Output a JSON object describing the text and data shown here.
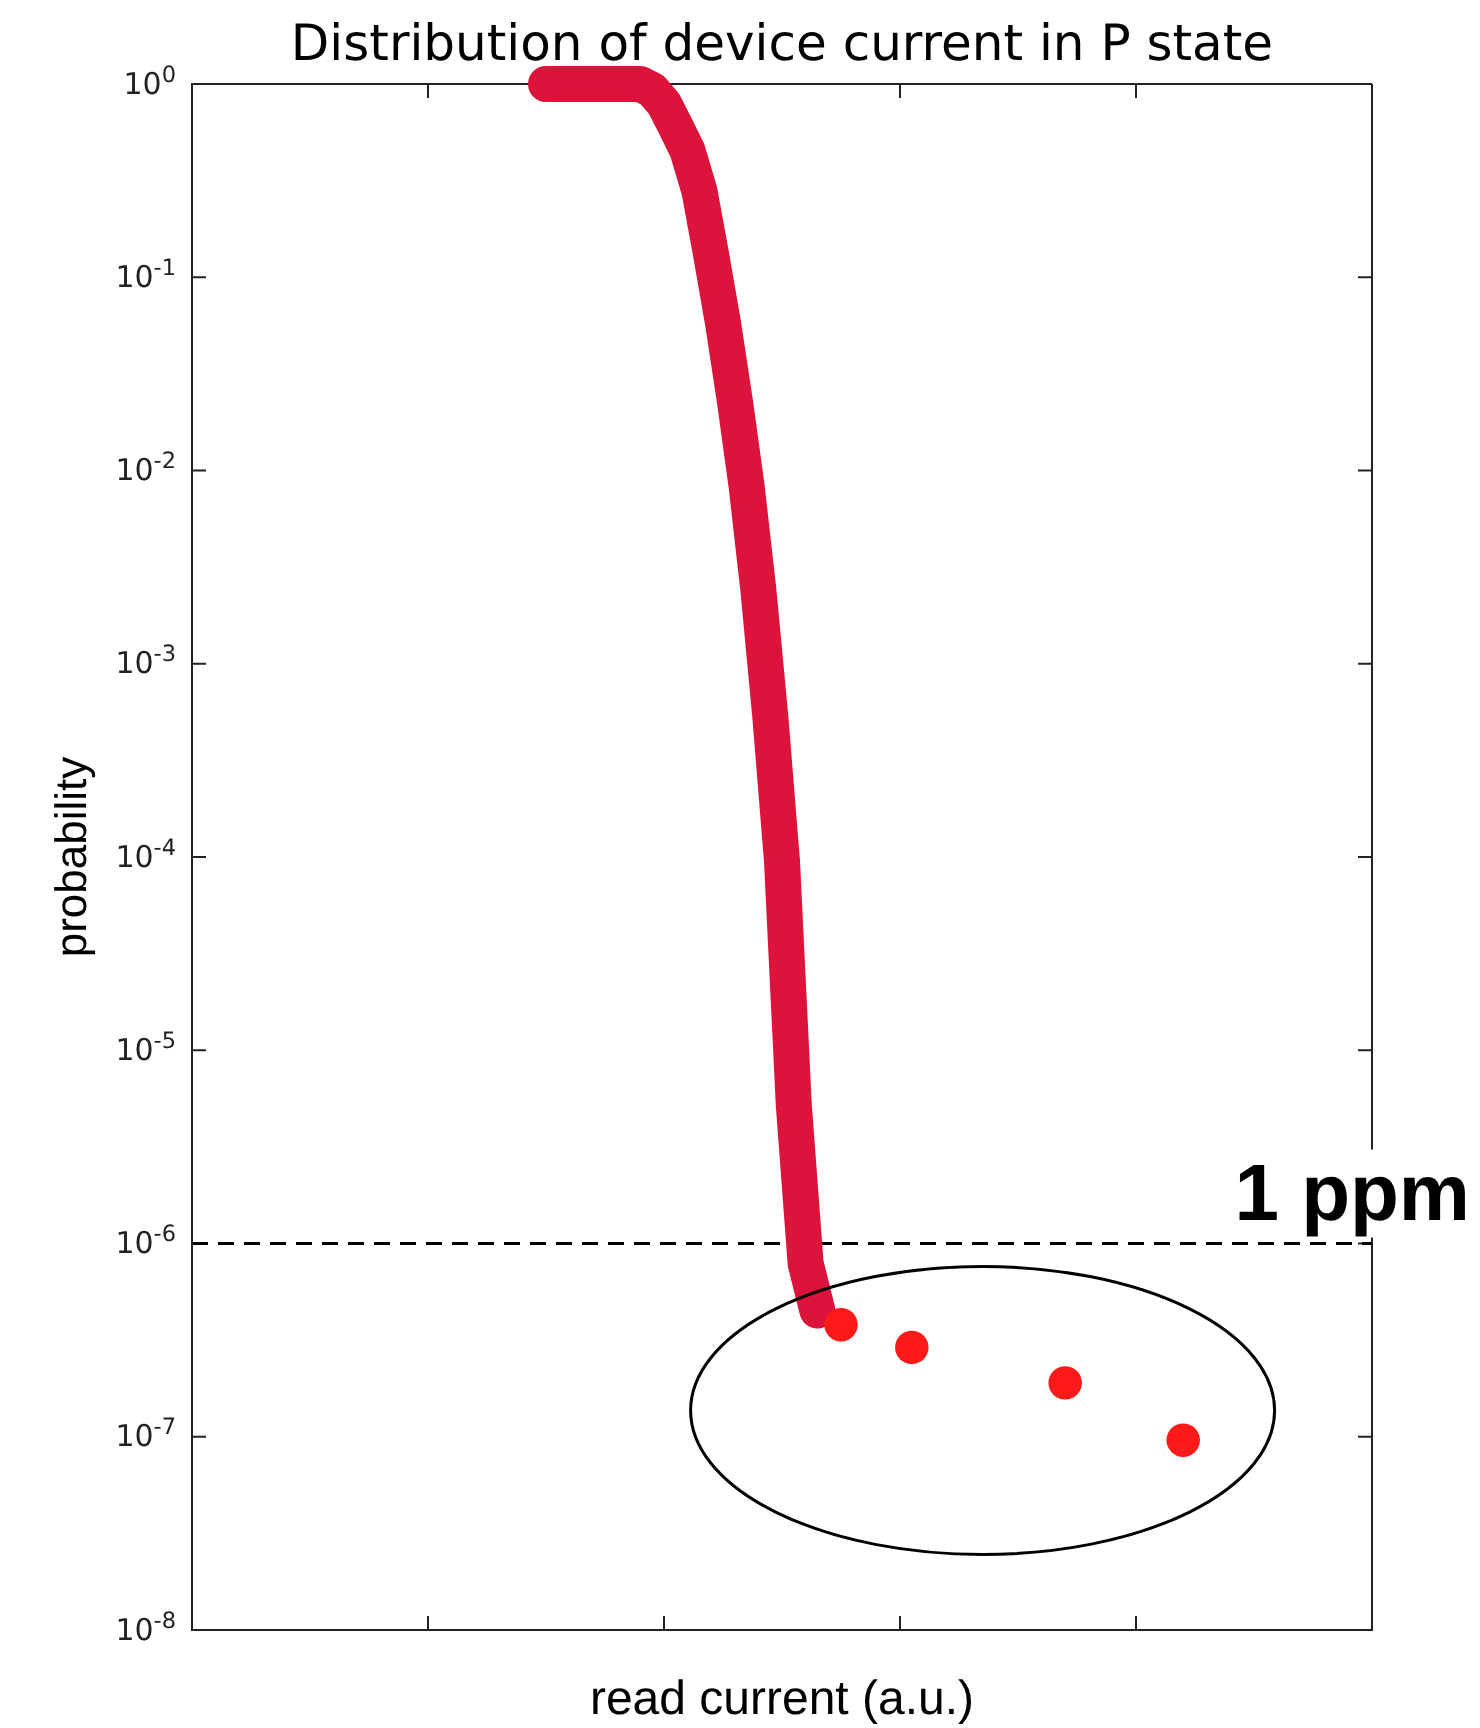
{
  "chart_data": {
    "type": "line",
    "title": "Distribution of device current in P state",
    "xlabel": "read current (a.u.)",
    "ylabel": "probability",
    "log": "y",
    "tick_labels": "y",
    "categories": [
      null,
      null,
      null,
      null,
      null,
      null,
      null,
      null,
      null,
      null,
      null,
      null,
      null,
      null,
      null,
      null,
      null,
      null,
      null,
      null,
      null,
      null,
      null,
      null,
      null,
      null,
      null,
      null,
      null,
      null,
      null,
      null,
      null,
      null,
      null,
      null,
      null,
      null,
      null,
      null,
      null,
      null,
      null,
      null,
      null,
      null,
      null,
      null,
      null,
      null,
      null,
      null,
      null,
      null,
      null,
      null,
      null,
      null,
      null,
      null,
      null,
      null,
      null,
      null,
      null,
      null,
      null,
      null,
      null,
      null,
      null,
      null,
      null,
      null,
      null,
      null,
      null,
      null,
      null,
      null,
      null,
      null,
      null,
      null,
      null,
      null,
      null,
      null,
      null,
      null,
      null,
      null,
      null,
      null,
      null,
      null,
      null,
      null,
      null,
      null,
      null
    ],
    "ylim": [
      1e-08,
      1
    ],
    "yticks": [
      {
        "value": 1e-08,
        "label": "10$^{-8}$"
      },
      {
        "value": 1e-07,
        "label": "10$^{-7}$"
      },
      {
        "value": 1e-06,
        "label": "10$^{-6}$"
      },
      {
        "value": 1e-05,
        "label": "10$^{-5}$"
      },
      {
        "value": 0.0001,
        "label": "10$^{-4}$"
      },
      {
        "value": 0.001,
        "label": "10$^{-3}$"
      },
      {
        "value": 0.01,
        "label": "10$^{-2}$"
      },
      {
        "value": 0.1,
        "label": "10$^{-1}$"
      },
      {
        "value": 1,
        "label": "10$^{0}$"
      }
    ],
    "series": [
      {
        "color": "#dc143c",
        "line_style": "solid",
        "values": [
          null,
          null,
          null,
          null,
          null,
          null,
          null,
          null,
          null,
          null,
          null,
          null,
          null,
          null,
          null,
          null,
          null,
          null,
          null,
          null,
          null,
          null,
          null,
          null,
          null,
          null,
          null,
          null,
          null,
          null,
          1,
          1,
          1,
          1,
          1,
          1,
          1,
          1,
          1,
          0.93,
          0.79,
          0.6,
          0.45,
          0.28,
          0.13,
          0.058,
          0.023,
          0.0083,
          0.0024,
          0.00054,
          9.5e-05,
          5.2e-06,
          7.9e-07,
          4.5e-07,
          null,
          null,
          null,
          null,
          null,
          null,
          null,
          null,
          null,
          null,
          null,
          null,
          null,
          null,
          null,
          null,
          null,
          null,
          null,
          null,
          null,
          null,
          null,
          null,
          null,
          null,
          null,
          null,
          null,
          null,
          null,
          null,
          null,
          null,
          null,
          null,
          null,
          null,
          null,
          null,
          null,
          null,
          null,
          null,
          null,
          null,
          null
        ]
      },
      {
        "type": "scatter",
        "color": "#ff1a1a",
        "marker": "circle",
        "values": [
          null,
          null,
          null,
          null,
          null,
          null,
          null,
          null,
          null,
          null,
          null,
          null,
          null,
          null,
          null,
          null,
          null,
          null,
          null,
          null,
          null,
          null,
          null,
          null,
          null,
          null,
          null,
          null,
          null,
          null,
          null,
          null,
          null,
          null,
          null,
          null,
          null,
          null,
          null,
          null,
          null,
          null,
          null,
          null,
          null,
          null,
          null,
          null,
          null,
          null,
          null,
          null,
          null,
          null,
          null,
          3.8e-07,
          null,
          null,
          null,
          null,
          null,
          2.9e-07,
          null,
          null,
          null,
          null,
          null,
          null,
          null,
          null,
          null,
          null,
          null,
          null,
          1.9e-07,
          null,
          null,
          null,
          null,
          null,
          null,
          null,
          null,
          null,
          9.6e-08,
          null,
          null,
          null,
          null,
          null,
          null,
          null,
          null,
          null,
          null,
          null,
          null,
          null,
          null,
          null,
          null
        ]
      }
    ],
    "ref_lines": [
      {
        "axis": "y",
        "value": 1e-06,
        "label": "1 ppm",
        "color": "#000000",
        "line_style": "dashed"
      }
    ]
  }
}
